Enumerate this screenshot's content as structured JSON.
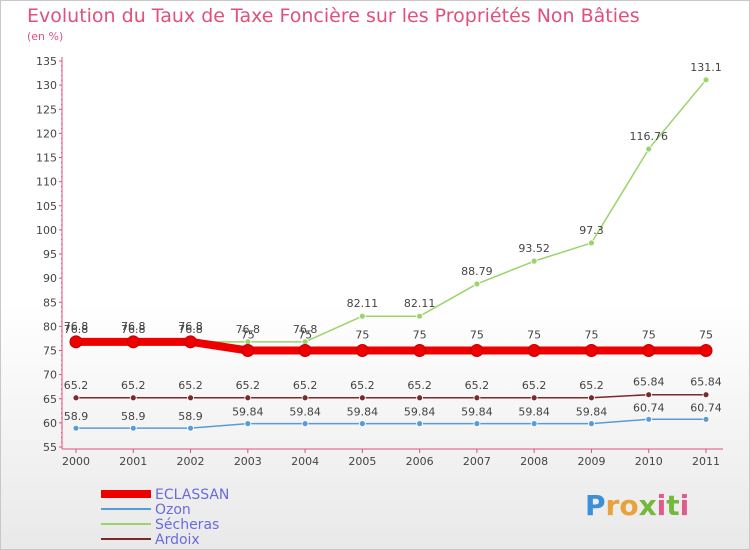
{
  "title": "Evolution du Taux de Taxe Foncière sur les Propriétés Non Bâties",
  "subtitle": "(en %)",
  "logo_text": "Proxiti",
  "chart_data": {
    "type": "line",
    "x": [
      "2000",
      "2001",
      "2002",
      "2003",
      "2004",
      "2005",
      "2006",
      "2007",
      "2008",
      "2009",
      "2010",
      "2011"
    ],
    "ylim": [
      55,
      135
    ],
    "yticks": [
      55,
      60,
      65,
      70,
      75,
      80,
      85,
      90,
      95,
      100,
      105,
      110,
      115,
      120,
      125,
      130,
      135
    ],
    "grid": false,
    "legend_position": "bottom-left",
    "series": [
      {
        "name": "ECLASSAN",
        "color": "#ee0000",
        "values": [
          76.8,
          76.8,
          76.8,
          75,
          75,
          75,
          75,
          75,
          75,
          75,
          75,
          75
        ],
        "labels": [
          "76.8",
          "76.8",
          "76.8",
          "75",
          "75",
          "75",
          "75",
          "75",
          "75",
          "75",
          "75",
          "75"
        ]
      },
      {
        "name": "Ozon",
        "color": "#5b9bd5",
        "values": [
          58.9,
          58.9,
          58.9,
          59.84,
          59.84,
          59.84,
          59.84,
          59.84,
          59.84,
          59.84,
          60.74,
          60.74
        ],
        "labels": [
          "58.9",
          "58.9",
          "58.9",
          "59.84",
          "59.84",
          "59.84",
          "59.84",
          "59.84",
          "59.84",
          "59.84",
          "60.74",
          "60.74"
        ]
      },
      {
        "name": "Sécheras",
        "color": "#9bd46a",
        "values": [
          76.8,
          76.8,
          76.8,
          76.8,
          76.8,
          82.11,
          82.11,
          88.79,
          93.52,
          97.3,
          116.76,
          131.1
        ],
        "labels": [
          "76.8",
          "76.8",
          "76.8",
          "76.8",
          "76.8",
          "82.11",
          "82.11",
          "88.79",
          "93.52",
          "97.3",
          "116.76",
          "131.1"
        ]
      },
      {
        "name": "Ardoix",
        "color": "#7a2a2a",
        "values": [
          65.2,
          65.2,
          65.2,
          65.2,
          65.2,
          65.2,
          65.2,
          65.2,
          65.2,
          65.2,
          65.84,
          65.84
        ],
        "labels": [
          "65.2",
          "65.2",
          "65.2",
          "65.2",
          "65.2",
          "65.2",
          "65.2",
          "65.2",
          "65.2",
          "65.2",
          "65.84",
          "65.84"
        ]
      }
    ]
  }
}
